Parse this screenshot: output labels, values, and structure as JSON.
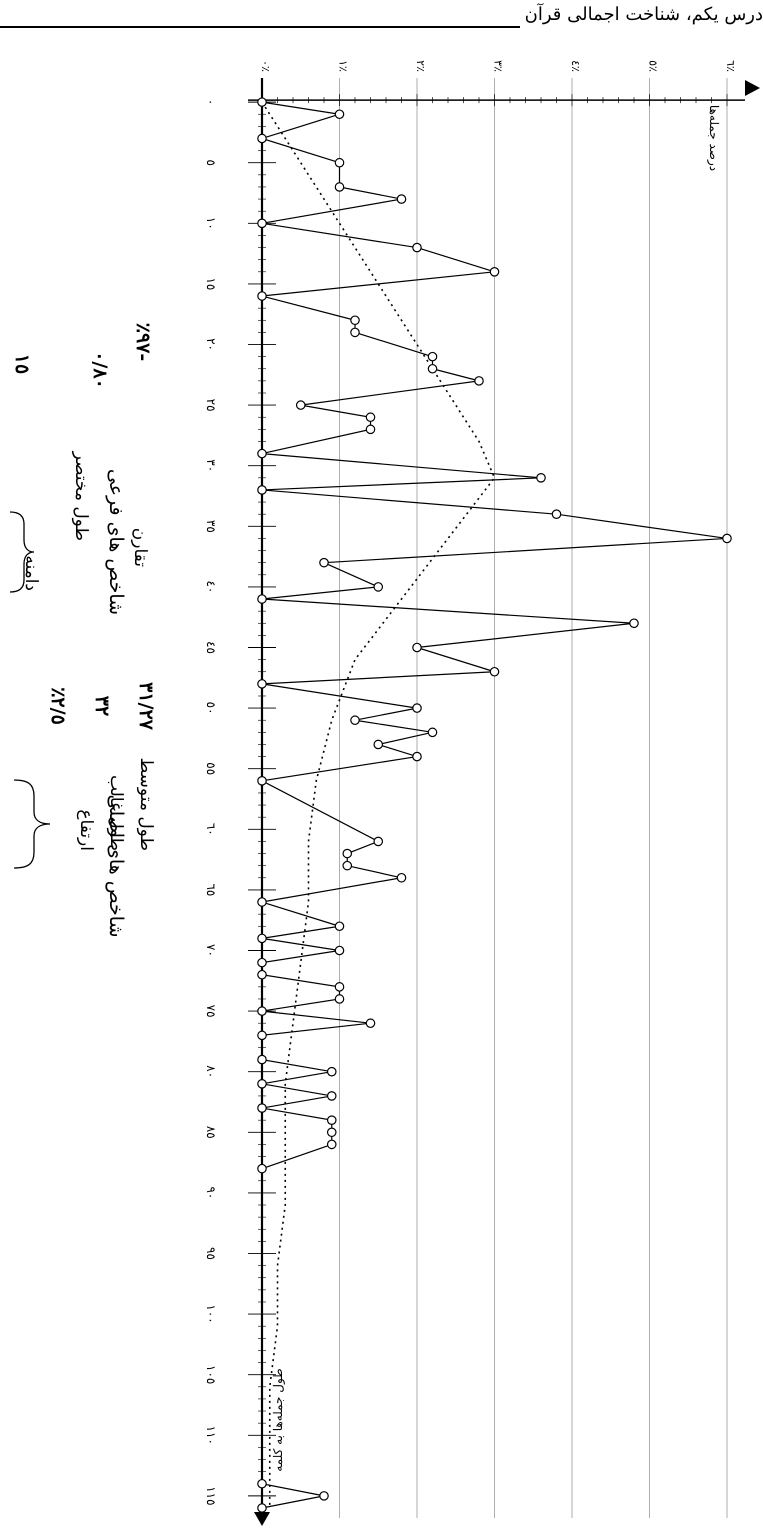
{
  "header": {
    "title": "درس یکم، شناخت اجمالی قرآن"
  },
  "chart_data": {
    "type": "line",
    "ylabel": "درصد جمله‌ها",
    "xlabel": "طول جمله‌ها به کلمه",
    "x_ticks": [
      "٠",
      "٥",
      "١٠",
      "١٥",
      "٢٠",
      "٢٥",
      "٣٠",
      "٣٥",
      "٤٠",
      "٤٥",
      "٥٠",
      "٥٥",
      "٦٠",
      "٦٥",
      "٧٠",
      "٧٥",
      "٨٠",
      "٨٥",
      "٩٠",
      "٩٥",
      "١٠٠",
      "١٠٥",
      "١١٠",
      "١١٥"
    ],
    "y_ticks": [
      "٠٪",
      "١٪",
      "٢٪",
      "٣٪",
      "٤٪",
      "٥٪",
      "٦٪"
    ],
    "xlim": [
      -1,
      116
    ],
    "ylim": [
      0,
      6
    ],
    "grid": true,
    "series": [
      {
        "style": "solid-with-circle-markers",
        "points": [
          [
            0,
            0
          ],
          [
            1,
            1
          ],
          [
            3,
            0
          ],
          [
            5,
            1
          ],
          [
            7,
            1
          ],
          [
            8,
            1.8
          ],
          [
            10,
            0
          ],
          [
            12,
            2
          ],
          [
            14,
            3
          ],
          [
            16,
            0
          ],
          [
            18,
            1.2
          ],
          [
            19,
            1.2
          ],
          [
            21,
            2.2
          ],
          [
            22,
            2.2
          ],
          [
            23,
            2.8
          ],
          [
            25,
            0.5
          ],
          [
            26,
            1.4
          ],
          [
            27,
            1.4
          ],
          [
            29,
            0
          ],
          [
            31,
            3.6
          ],
          [
            32,
            0
          ],
          [
            34,
            3.8
          ],
          [
            36,
            6
          ],
          [
            38,
            0.8
          ],
          [
            40,
            1.5
          ],
          [
            41,
            0
          ],
          [
            43,
            4.8
          ],
          [
            45,
            2
          ],
          [
            47,
            3
          ],
          [
            48,
            0
          ],
          [
            50,
            2
          ],
          [
            51,
            1.2
          ],
          [
            52,
            2.2
          ],
          [
            53,
            1.5
          ],
          [
            54,
            2
          ],
          [
            56,
            0
          ],
          [
            61,
            1.5
          ],
          [
            62,
            1.1
          ],
          [
            63,
            1.1
          ],
          [
            64,
            1.8
          ],
          [
            66,
            0
          ],
          [
            68,
            1
          ],
          [
            69,
            0
          ],
          [
            70,
            1
          ],
          [
            71,
            0
          ],
          [
            72,
            0
          ],
          [
            73,
            1
          ],
          [
            74,
            1
          ],
          [
            75,
            0
          ],
          [
            76,
            1.4
          ],
          [
            77,
            0
          ],
          [
            79,
            0
          ],
          [
            80,
            0.9
          ],
          [
            81,
            0
          ],
          [
            82,
            0.9
          ],
          [
            83,
            0
          ],
          [
            84,
            0.9
          ],
          [
            85,
            0.9
          ],
          [
            86,
            0.9
          ],
          [
            88,
            0
          ],
          [
            114,
            0
          ],
          [
            115,
            0.8
          ],
          [
            116,
            0
          ]
        ]
      },
      {
        "style": "dotted-trend",
        "points": [
          [
            0,
            0
          ],
          [
            6,
            0.6
          ],
          [
            12,
            1.2
          ],
          [
            18,
            1.8
          ],
          [
            24,
            2.4
          ],
          [
            28,
            2.8
          ],
          [
            31,
            3
          ],
          [
            36,
            2.4
          ],
          [
            41,
            1.8
          ],
          [
            46,
            1.2
          ],
          [
            51,
            0.9
          ],
          [
            56,
            0.7
          ],
          [
            61,
            0.6
          ],
          [
            66,
            0.6
          ],
          [
            71,
            0.5
          ],
          [
            76,
            0.4
          ],
          [
            81,
            0.3
          ],
          [
            86,
            0.3
          ],
          [
            91,
            0.3
          ],
          [
            96,
            0.2
          ],
          [
            101,
            0.2
          ],
          [
            106,
            0.1
          ],
          [
            111,
            0.1
          ],
          [
            116,
            0.1
          ]
        ]
      }
    ]
  },
  "sidebar": {
    "main_indicators": {
      "heading": "شاخص های اصلی",
      "rows": [
        {
          "label": "طول متوسط",
          "value": "٣١/٢٧"
        },
        {
          "label": "طول غالب",
          "value": "٣٢"
        },
        {
          "label": "ارتفاع",
          "value": "٢/٥٪"
        }
      ]
    },
    "sub_indicators": {
      "heading": "شاخص های فرعی",
      "rows": [
        {
          "label": "تقارن",
          "value": "-٩٧٪"
        },
        {
          "label": "طول مختصر",
          "value": "٠/٨٠"
        },
        {
          "label": "دامنه",
          "value": "١٥"
        }
      ]
    }
  }
}
